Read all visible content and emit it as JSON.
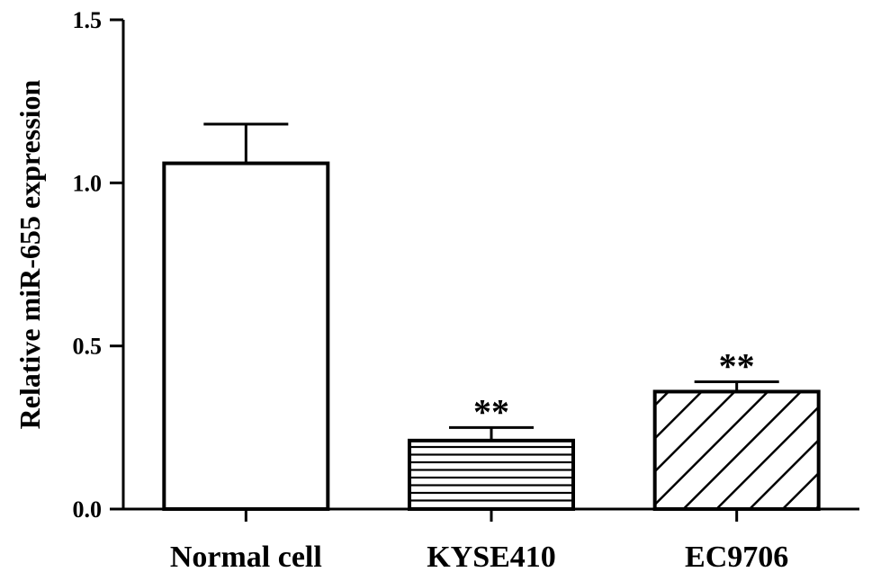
{
  "chart_data": {
    "type": "bar",
    "categories": [
      "Normal cell",
      "KYSE410",
      "EC9706"
    ],
    "values": [
      1.06,
      0.21,
      0.36
    ],
    "errors": [
      0.12,
      0.04,
      0.03
    ],
    "patterns": [
      "none",
      "horizontal-lines",
      "diagonal-lines"
    ],
    "annotations": [
      "",
      "**",
      "**"
    ],
    "ylabel": "Relative miR-655 expression",
    "xlabel": "",
    "title": "",
    "ylim": [
      0,
      1.5
    ],
    "yticks": [
      "0.0",
      "0.5",
      "1.0",
      "1.5"
    ],
    "grid": false,
    "colors": {
      "bar_fill": "#ffffff",
      "stroke": "#000000"
    }
  }
}
